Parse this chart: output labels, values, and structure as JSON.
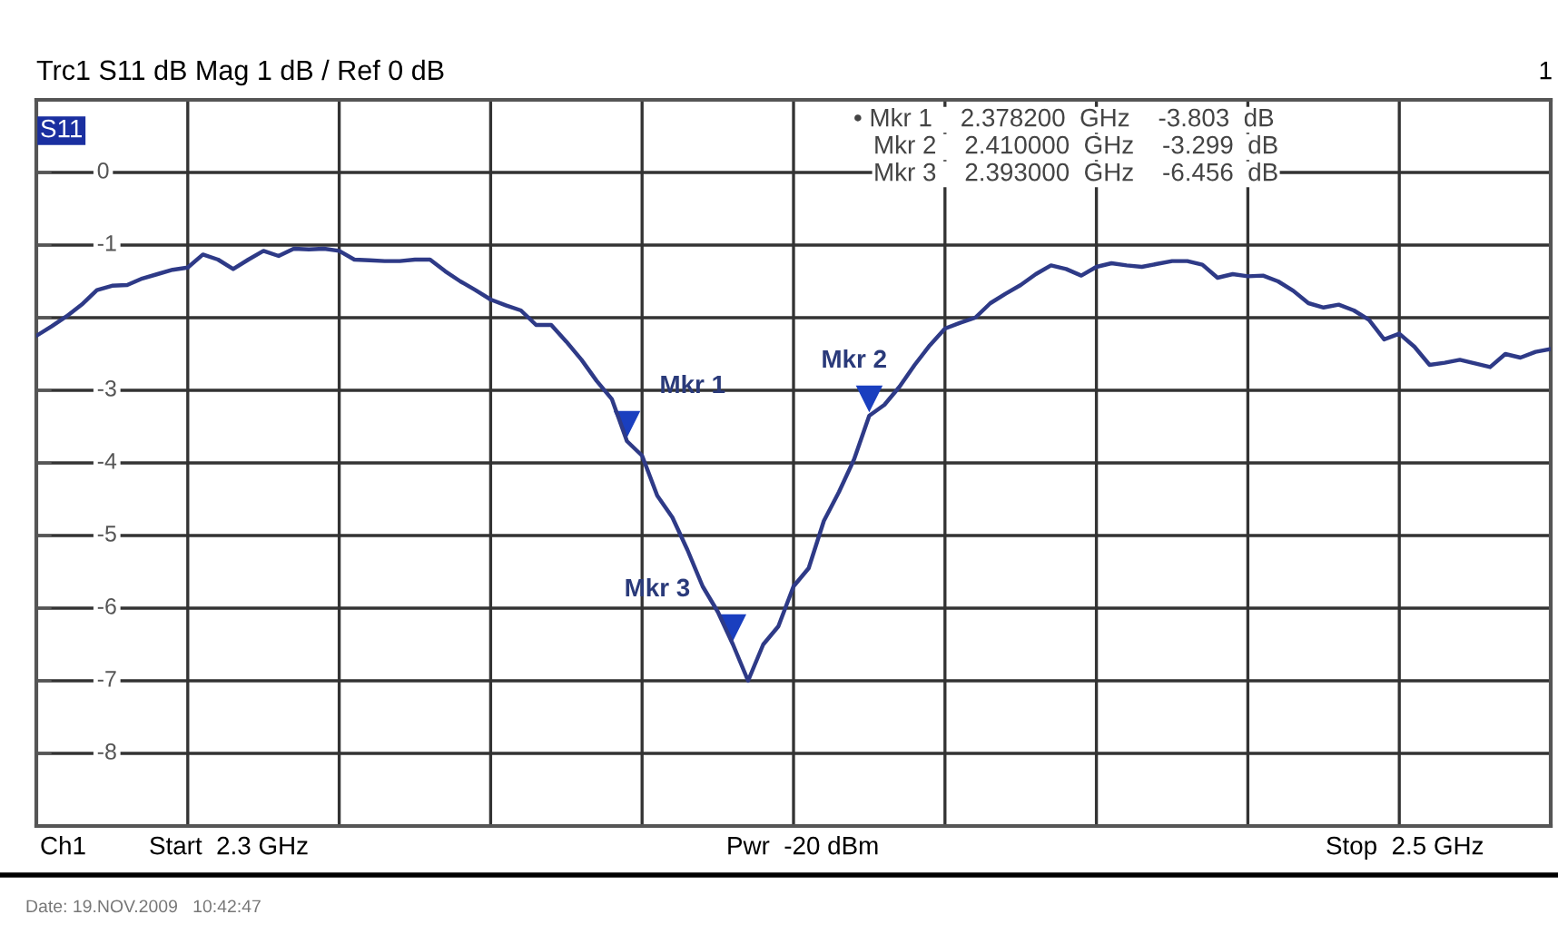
{
  "chart_data": {
    "type": "line",
    "title": "Trc1 S11 dB Mag 1 dB / Ref 0 dB",
    "categories": [
      null,
      null,
      null,
      null,
      null,
      null,
      null,
      null,
      null,
      null,
      null,
      null,
      null,
      null,
      null,
      null,
      null,
      null,
      null,
      null,
      null,
      null,
      null,
      null,
      null,
      null,
      null,
      null,
      null,
      null,
      null,
      null,
      null,
      null,
      null,
      null,
      null,
      null,
      null,
      null,
      null,
      null,
      null,
      null,
      null,
      null,
      null,
      null,
      null,
      null,
      null,
      null,
      null,
      null,
      null,
      null,
      null,
      null,
      null,
      null,
      null,
      null,
      null,
      null,
      null,
      null,
      null,
      null,
      null,
      null,
      null,
      null,
      null,
      null,
      null,
      null,
      null,
      null,
      null,
      null,
      null,
      null,
      null,
      null,
      null,
      null,
      null,
      null,
      null,
      null,
      null,
      null,
      null,
      null,
      null,
      null,
      null,
      null,
      null,
      null,
      null
    ],
    "ylim": [
      -9,
      1
    ],
    "yticks": [
      {
        "value": 1,
        "label": null
      },
      0,
      -1,
      {
        "value": -2,
        "label": null
      },
      -3,
      -4,
      -5,
      -6,
      -7,
      -8,
      {
        "value": -9,
        "label": null
      }
    ],
    "grid": true,
    "line_style": "solid",
    "series": [
      {
        "color": "#2e3a87",
        "values": [
          -2.25,
          -2.12,
          -1.98,
          -1.82,
          -1.62,
          -1.56,
          -1.55,
          -1.46,
          -1.4,
          -1.34,
          -1.31,
          -1.13,
          -1.2,
          -1.33,
          -1.2,
          -1.08,
          -1.15,
          -1.05,
          -1.06,
          -1.05,
          -1.08,
          -1.2,
          -1.21,
          -1.22,
          -1.22,
          -1.2,
          -1.2,
          -1.36,
          -1.5,
          -1.62,
          -1.75,
          -1.83,
          -1.9,
          -2.1,
          -2.1,
          -2.33,
          -2.58,
          -2.87,
          -3.12,
          -3.7,
          -3.9,
          -4.45,
          -4.75,
          -5.2,
          -5.7,
          -6.05,
          -6.5,
          -7.0,
          -6.5,
          -6.25,
          -5.7,
          -5.45,
          -4.8,
          -4.4,
          -3.95,
          -3.35,
          -3.2,
          -2.95,
          -2.65,
          -2.38,
          -2.15,
          -2.07,
          -2.0,
          -1.8,
          -1.67,
          -1.55,
          -1.4,
          -1.28,
          -1.33,
          -1.42,
          -1.3,
          -1.25,
          -1.28,
          -1.3,
          -1.26,
          -1.22,
          -1.22,
          -1.27,
          -1.45,
          -1.4,
          -1.43,
          -1.42,
          -1.5,
          -1.63,
          -1.8,
          -1.86,
          -1.82,
          -1.9,
          -2.03,
          -2.3,
          -2.22,
          -2.4,
          -2.65,
          -2.62,
          -2.58,
          -2.63,
          -2.68,
          -2.5,
          -2.55,
          -2.47,
          -2.43
        ]
      }
    ],
    "annotations": [
      "S11",
      "1",
      "• Mkr 1    2.378200  GHz    -3.803  dB",
      "Mkr 2    2.410000  GHz    -3.299  dB",
      "Mkr 3    2.393000  GHz    -6.456  dB",
      "Mkr 1",
      "Mkr 2",
      "Mkr 3",
      "Ch1",
      "Start  2.3 GHz",
      "Pwr  -20 dBm",
      "Stop  2.5 GHz",
      "Date: 19.NOV.2009   10:42:47"
    ]
  }
}
